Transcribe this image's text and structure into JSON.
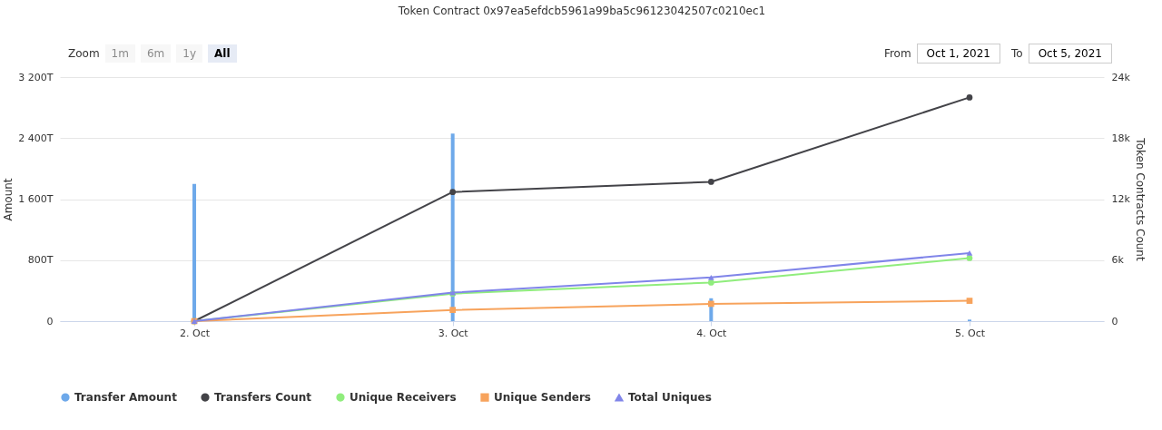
{
  "chart_data": {
    "type": "line",
    "title": "Token Contract 0x97ea5efdcb5961a99ba5c96123042507c0210ec1",
    "categories": [
      "2. Oct",
      "3. Oct",
      "4. Oct",
      "5. Oct"
    ],
    "ylabel": "Amount",
    "y2label": "Token Contracts Count",
    "ylim": [
      0,
      3200
    ],
    "yticks": [
      0,
      {
        "value": 800,
        "label": "800T"
      },
      {
        "value": 1600,
        "label": "1 600T"
      },
      {
        "value": 2400,
        "label": "2 400T"
      },
      {
        "value": 3200,
        "label": "3 200T"
      }
    ],
    "y2lim": [
      0,
      24000
    ],
    "y2ticks": [
      0,
      {
        "value": 6000,
        "label": "6k"
      },
      {
        "value": 12000,
        "label": "12k"
      },
      {
        "value": 18000,
        "label": "18k"
      },
      {
        "value": 24000,
        "label": "24k"
      }
    ],
    "series": [
      {
        "name": "Transfer Amount",
        "type": "bar",
        "color": "#6ea9ea",
        "values": [
          1800,
          2460,
          300,
          20
        ]
      },
      {
        "name": "Transfers Count",
        "axis": "y2",
        "marker": "circle",
        "color": "#434348",
        "values": [
          0,
          12700,
          13700,
          22000
        ]
      },
      {
        "name": "Unique Receivers",
        "axis": "y2",
        "marker": "circle",
        "color": "#90ed7d",
        "values": [
          0,
          2700,
          3800,
          6200
        ]
      },
      {
        "name": "Unique Senders",
        "axis": "y2",
        "marker": "square",
        "color": "#f7a35c",
        "values": [
          0,
          1100,
          1700,
          2000
        ]
      },
      {
        "name": "Total Uniques",
        "axis": "y2",
        "marker": "triangle",
        "color": "#8085e9",
        "values": [
          0,
          2800,
          4300,
          6700
        ]
      }
    ],
    "grid": "y",
    "legend": "bottom",
    "annotations": [
      "Zoom",
      "1m",
      "6m",
      "1y",
      "All",
      "From",
      "Oct 1, 2021",
      "To",
      "Oct 5, 2021"
    ]
  }
}
